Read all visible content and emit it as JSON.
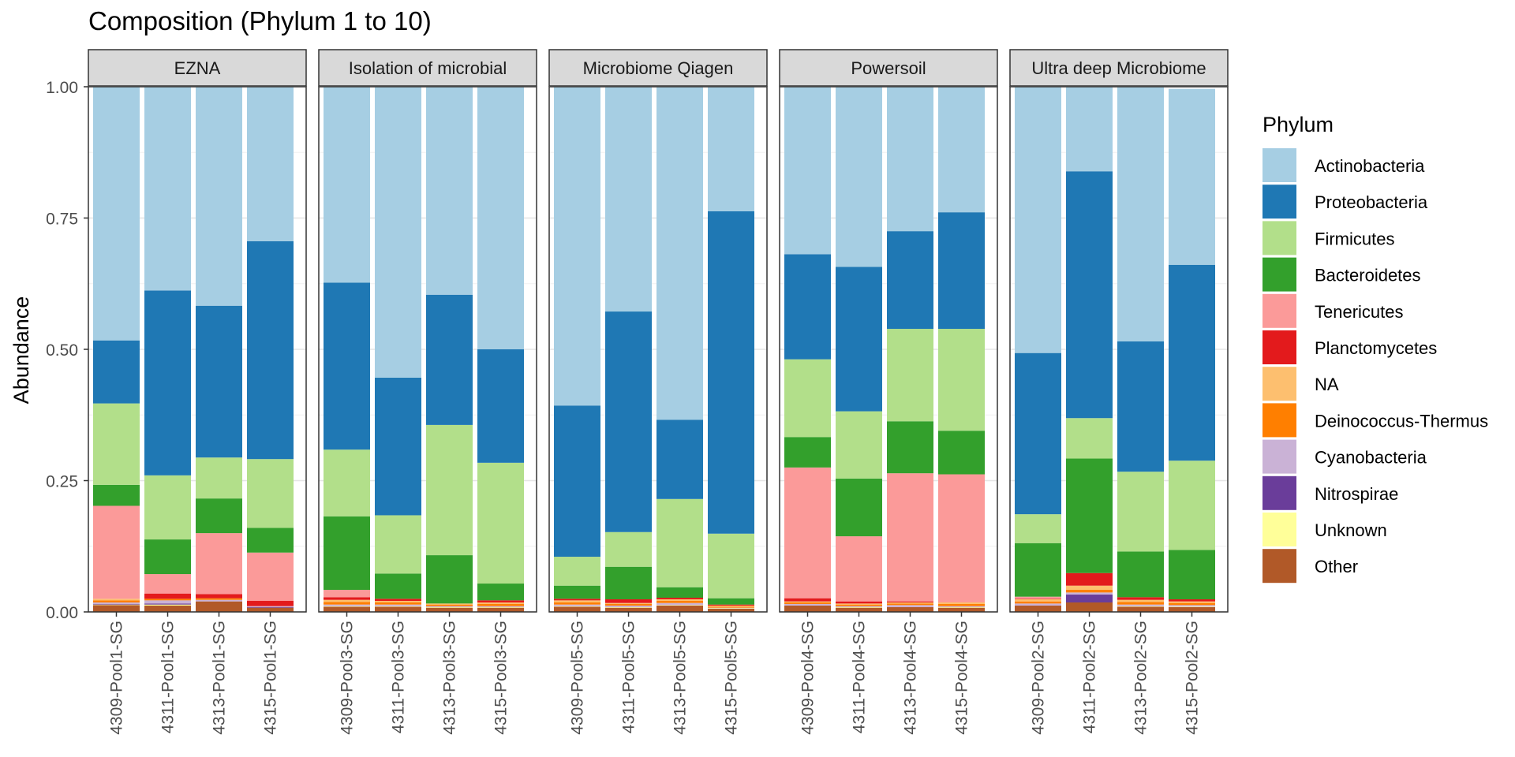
{
  "chart_data": {
    "type": "bar",
    "stacked": true,
    "title": "Composition (Phylum 1 to 10)",
    "xlabel": "",
    "ylabel": "Abundance",
    "ylim": [
      0,
      1
    ],
    "yticks": [
      "0.00",
      "0.25",
      "0.50",
      "0.75",
      "1.00"
    ],
    "legend": {
      "title": "Phylum",
      "position": "right",
      "entries": [
        "Actinobacteria",
        "Proteobacteria",
        "Firmicutes",
        "Bacteroidetes",
        "Tenericutes",
        "Planctomycetes",
        "NA",
        "Deinococcus-Thermus",
        "Cyanobacteria",
        "Nitrospirae",
        "Unknown",
        "Other"
      ]
    },
    "colors": {
      "Actinobacteria": "#A6CEE3",
      "Proteobacteria": "#1F78B4",
      "Firmicutes": "#B2DF8A",
      "Bacteroidetes": "#33A02C",
      "Tenericutes": "#FB9A99",
      "Planctomycetes": "#E31A1C",
      "NA": "#FDBF6F",
      "Deinococcus-Thermus": "#FF7F00",
      "Cyanobacteria": "#CAB2D6",
      "Nitrospirae": "#6A3D9A",
      "Unknown": "#FFFF99",
      "Other": "#B15928"
    },
    "stack_order_bottom_to_top": [
      "Other",
      "Unknown",
      "Nitrospirae",
      "Cyanobacteria",
      "Deinococcus-Thermus",
      "NA",
      "Planctomycetes",
      "Tenericutes",
      "Bacteroidetes",
      "Firmicutes",
      "Proteobacteria",
      "Actinobacteria"
    ],
    "facets": [
      {
        "name": "EZNA",
        "samples": [
          {
            "name": "4309-Pool1-SG",
            "values": {
              "Other": 0.013,
              "Unknown": 0.001,
              "Nitrospirae": 0.001,
              "Cyanobacteria": 0.003,
              "Deinococcus-Thermus": 0.004,
              "NA": 0.003,
              "Planctomycetes": 0.0,
              "Tenericutes": 0.177,
              "Bacteroidetes": 0.04,
              "Firmicutes": 0.155,
              "Proteobacteria": 0.12,
              "Actinobacteria": 0.483
            }
          },
          {
            "name": "4311-Pool1-SG",
            "values": {
              "Other": 0.012,
              "Unknown": 0.002,
              "Nitrospirae": 0.002,
              "Cyanobacteria": 0.006,
              "Deinococcus-Thermus": 0.003,
              "NA": 0.0,
              "Planctomycetes": 0.01,
              "Tenericutes": 0.037,
              "Bacteroidetes": 0.066,
              "Firmicutes": 0.122,
              "Proteobacteria": 0.352,
              "Actinobacteria": 0.388
            }
          },
          {
            "name": "4313-Pool1-SG",
            "values": {
              "Other": 0.02,
              "Unknown": 0.0,
              "Nitrospirae": 0.0,
              "Cyanobacteria": 0.003,
              "Deinococcus-Thermus": 0.003,
              "NA": 0.0,
              "Planctomycetes": 0.008,
              "Tenericutes": 0.116,
              "Bacteroidetes": 0.066,
              "Firmicutes": 0.078,
              "Proteobacteria": 0.289,
              "Actinobacteria": 0.417
            }
          },
          {
            "name": "4315-Pool1-SG",
            "values": {
              "Other": 0.008,
              "Unknown": 0.0,
              "Nitrospirae": 0.001,
              "Cyanobacteria": 0.002,
              "Deinococcus-Thermus": 0.0,
              "NA": 0.0,
              "Planctomycetes": 0.01,
              "Tenericutes": 0.092,
              "Bacteroidetes": 0.047,
              "Firmicutes": 0.131,
              "Proteobacteria": 0.415,
              "Actinobacteria": 0.294
            }
          }
        ]
      },
      {
        "name": "Isolation of microbial",
        "samples": [
          {
            "name": "4309-Pool3-SG",
            "values": {
              "Other": 0.01,
              "Unknown": 0.001,
              "Nitrospirae": 0.0,
              "Cyanobacteria": 0.003,
              "Deinococcus-Thermus": 0.005,
              "NA": 0.004,
              "Planctomycetes": 0.005,
              "Tenericutes": 0.014,
              "Bacteroidetes": 0.14,
              "Firmicutes": 0.127,
              "Proteobacteria": 0.318,
              "Actinobacteria": 0.373
            }
          },
          {
            "name": "4311-Pool3-SG",
            "values": {
              "Other": 0.01,
              "Unknown": 0.001,
              "Nitrospirae": 0.0,
              "Cyanobacteria": 0.003,
              "Deinococcus-Thermus": 0.004,
              "NA": 0.003,
              "Planctomycetes": 0.004,
              "Tenericutes": 0.0,
              "Bacteroidetes": 0.048,
              "Firmicutes": 0.111,
              "Proteobacteria": 0.262,
              "Actinobacteria": 0.554
            }
          },
          {
            "name": "4313-Pool3-SG",
            "values": {
              "Other": 0.008,
              "Unknown": 0.001,
              "Nitrospirae": 0.0,
              "Cyanobacteria": 0.002,
              "Deinococcus-Thermus": 0.003,
              "NA": 0.002,
              "Planctomycetes": 0.0,
              "Tenericutes": 0.0,
              "Bacteroidetes": 0.092,
              "Firmicutes": 0.248,
              "Proteobacteria": 0.248,
              "Actinobacteria": 0.396
            }
          },
          {
            "name": "4315-Pool3-SG",
            "values": {
              "Other": 0.008,
              "Unknown": 0.001,
              "Nitrospirae": 0.0,
              "Cyanobacteria": 0.002,
              "Deinococcus-Thermus": 0.004,
              "NA": 0.003,
              "Planctomycetes": 0.004,
              "Tenericutes": 0.0,
              "Bacteroidetes": 0.032,
              "Firmicutes": 0.23,
              "Proteobacteria": 0.216,
              "Actinobacteria": 0.5
            }
          }
        ]
      },
      {
        "name": "Microbiome Qiagen",
        "samples": [
          {
            "name": "4309-Pool5-SG",
            "values": {
              "Other": 0.01,
              "Unknown": 0.001,
              "Nitrospirae": 0.0,
              "Cyanobacteria": 0.003,
              "Deinococcus-Thermus": 0.004,
              "NA": 0.004,
              "Planctomycetes": 0.003,
              "Tenericutes": 0.0,
              "Bacteroidetes": 0.025,
              "Firmicutes": 0.055,
              "Proteobacteria": 0.288,
              "Actinobacteria": 0.607
            }
          },
          {
            "name": "4311-Pool5-SG",
            "values": {
              "Other": 0.008,
              "Unknown": 0.001,
              "Nitrospirae": 0.0,
              "Cyanobacteria": 0.003,
              "Deinococcus-Thermus": 0.003,
              "NA": 0.002,
              "Planctomycetes": 0.007,
              "Tenericutes": 0.0,
              "Bacteroidetes": 0.062,
              "Firmicutes": 0.066,
              "Proteobacteria": 0.42,
              "Actinobacteria": 0.428
            }
          },
          {
            "name": "4313-Pool5-SG",
            "values": {
              "Other": 0.012,
              "Unknown": 0.001,
              "Nitrospirae": 0.0,
              "Cyanobacteria": 0.004,
              "Deinococcus-Thermus": 0.004,
              "NA": 0.003,
              "Planctomycetes": 0.003,
              "Tenericutes": 0.0,
              "Bacteroidetes": 0.02,
              "Firmicutes": 0.168,
              "Proteobacteria": 0.151,
              "Actinobacteria": 0.634
            }
          },
          {
            "name": "4315-Pool5-SG",
            "values": {
              "Other": 0.006,
              "Unknown": 0.001,
              "Nitrospirae": 0.0,
              "Cyanobacteria": 0.001,
              "Deinococcus-Thermus": 0.002,
              "NA": 0.002,
              "Planctomycetes": 0.002,
              "Tenericutes": 0.0,
              "Bacteroidetes": 0.012,
              "Firmicutes": 0.123,
              "Proteobacteria": 0.614,
              "Actinobacteria": 0.237
            }
          }
        ]
      },
      {
        "name": "Powersoil",
        "samples": [
          {
            "name": "4309-Pool4-SG",
            "values": {
              "Other": 0.012,
              "Unknown": 0.0,
              "Nitrospirae": 0.0,
              "Cyanobacteria": 0.003,
              "Deinococcus-Thermus": 0.003,
              "NA": 0.002,
              "Planctomycetes": 0.006,
              "Tenericutes": 0.249,
              "Bacteroidetes": 0.058,
              "Firmicutes": 0.148,
              "Proteobacteria": 0.2,
              "Actinobacteria": 0.319
            }
          },
          {
            "name": "4311-Pool4-SG",
            "values": {
              "Other": 0.008,
              "Unknown": 0.001,
              "Nitrospirae": 0.0,
              "Cyanobacteria": 0.002,
              "Deinococcus-Thermus": 0.003,
              "NA": 0.002,
              "Planctomycetes": 0.004,
              "Tenericutes": 0.124,
              "Bacteroidetes": 0.11,
              "Firmicutes": 0.128,
              "Proteobacteria": 0.275,
              "Actinobacteria": 0.343
            }
          },
          {
            "name": "4313-Pool4-SG",
            "values": {
              "Other": 0.009,
              "Unknown": 0.0,
              "Nitrospirae": 0.0,
              "Cyanobacteria": 0.004,
              "Deinococcus-Thermus": 0.003,
              "NA": 0.002,
              "Planctomycetes": 0.002,
              "Tenericutes": 0.244,
              "Bacteroidetes": 0.099,
              "Firmicutes": 0.176,
              "Proteobacteria": 0.186,
              "Actinobacteria": 0.275
            }
          },
          {
            "name": "4315-Pool4-SG",
            "values": {
              "Other": 0.008,
              "Unknown": 0.001,
              "Nitrospirae": 0.0,
              "Cyanobacteria": 0.002,
              "Deinococcus-Thermus": 0.004,
              "NA": 0.003,
              "Planctomycetes": 0.0,
              "Tenericutes": 0.244,
              "Bacteroidetes": 0.083,
              "Firmicutes": 0.194,
              "Proteobacteria": 0.222,
              "Actinobacteria": 0.239
            }
          }
        ]
      },
      {
        "name": "Ultra deep Microbiome",
        "samples": [
          {
            "name": "4309-Pool2-SG",
            "values": {
              "Other": 0.012,
              "Unknown": 0.0,
              "Nitrospirae": 0.0,
              "Cyanobacteria": 0.004,
              "Deinococcus-Thermus": 0.004,
              "NA": 0.004,
              "Planctomycetes": 0.001,
              "Tenericutes": 0.004,
              "Bacteroidetes": 0.102,
              "Firmicutes": 0.055,
              "Proteobacteria": 0.307,
              "Actinobacteria": 0.507
            }
          },
          {
            "name": "4311-Pool2-SG",
            "values": {
              "Other": 0.018,
              "Unknown": 0.0,
              "Nitrospirae": 0.015,
              "Cyanobacteria": 0.004,
              "Deinococcus-Thermus": 0.005,
              "NA": 0.008,
              "Planctomycetes": 0.024,
              "Tenericutes": 0.0,
              "Bacteroidetes": 0.218,
              "Firmicutes": 0.077,
              "Proteobacteria": 0.47,
              "Actinobacteria": 0.161
            }
          },
          {
            "name": "4313-Pool2-SG",
            "values": {
              "Other": 0.01,
              "Unknown": 0.001,
              "Nitrospirae": 0.0,
              "Cyanobacteria": 0.003,
              "Deinococcus-Thermus": 0.005,
              "NA": 0.004,
              "Planctomycetes": 0.005,
              "Tenericutes": 0.0,
              "Bacteroidetes": 0.087,
              "Firmicutes": 0.152,
              "Proteobacteria": 0.248,
              "Actinobacteria": 0.485
            }
          },
          {
            "name": "4315-Pool2-SG",
            "values": {
              "Other": 0.009,
              "Unknown": 0.001,
              "Nitrospirae": 0.0,
              "Cyanobacteria": 0.003,
              "Deinococcus-Thermus": 0.004,
              "NA": 0.003,
              "Planctomycetes": 0.004,
              "Tenericutes": 0.0,
              "Bacteroidetes": 0.094,
              "Firmicutes": 0.17,
              "Proteobacteria": 0.373,
              "Actinobacteria": 0.335
            }
          }
        ]
      }
    ]
  }
}
